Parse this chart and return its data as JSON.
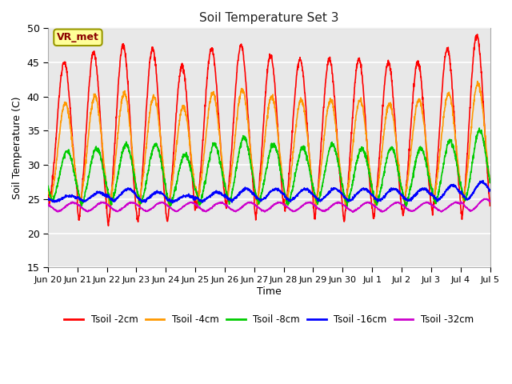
{
  "title": "Soil Temperature Set 3",
  "xlabel": "Time",
  "ylabel": "Soil Temperature (C)",
  "ylim": [
    15,
    50
  ],
  "yticks": [
    15,
    20,
    25,
    30,
    35,
    40,
    45,
    50
  ],
  "fig_bg_color": "#ffffff",
  "plot_bg_color": "#e8e8e8",
  "grid_color": "#ffffff",
  "annotation_text": "VR_met",
  "annotation_box_color": "#ffff99",
  "annotation_border_color": "#999900",
  "series": {
    "Tsoil -2cm": {
      "color": "#ff0000",
      "linewidth": 1.2
    },
    "Tsoil -4cm": {
      "color": "#ff9900",
      "linewidth": 1.2
    },
    "Tsoil -8cm": {
      "color": "#00cc00",
      "linewidth": 1.2
    },
    "Tsoil -16cm": {
      "color": "#0000ff",
      "linewidth": 1.2
    },
    "Tsoil -32cm": {
      "color": "#cc00cc",
      "linewidth": 1.2
    }
  },
  "x_tick_labels": [
    "Jun 20",
    "Jun 21",
    "Jun 22",
    "Jun 23",
    "Jun 24",
    "Jun 25",
    "Jun 26",
    "Jun 27",
    "Jun 28",
    "Jun 29",
    "Jun 30",
    "Jul 1",
    "Jul 2",
    "Jul 3",
    "Jul 4",
    "Jul 5"
  ],
  "x_tick_positions": [
    0,
    1,
    2,
    3,
    4,
    5,
    6,
    7,
    8,
    9,
    10,
    11,
    12,
    13,
    14,
    15
  ],
  "num_days": 15,
  "points_per_day": 144
}
